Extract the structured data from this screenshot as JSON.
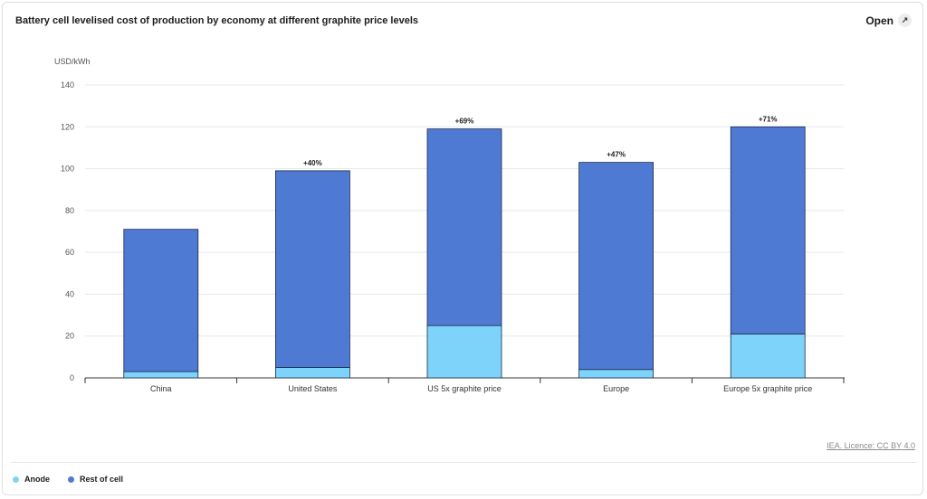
{
  "header": {
    "title": "Battery cell levelised cost of production by economy at different graphite price levels",
    "open_label": "Open",
    "open_icon": "expand-arrows-icon"
  },
  "credit": "IEA. Licence: CC BY 4.0",
  "legend": [
    {
      "label": "Anode",
      "color": "#7dd3fa"
    },
    {
      "label": "Rest of cell",
      "color": "#4f7ad3"
    }
  ],
  "chart_data": {
    "type": "bar",
    "stacked": true,
    "ylabel": "USD/kWh",
    "ylim": [
      0,
      140
    ],
    "yticks": [
      0,
      20,
      40,
      60,
      80,
      100,
      120,
      140
    ],
    "grid": true,
    "legend_position": "bottom-left",
    "categories": [
      "China",
      "United States",
      "US 5x graphite price",
      "Europe",
      "Europe 5x graphite price"
    ],
    "series": [
      {
        "name": "Anode",
        "color": "#7dd3fa",
        "values": [
          3,
          5,
          25,
          4,
          21
        ]
      },
      {
        "name": "Rest of cell",
        "color": "#4f7ad3",
        "values": [
          68,
          94,
          94,
          99,
          99
        ]
      }
    ],
    "annotations": [
      "",
      "+40%",
      "+69%",
      "+47%",
      "+71%"
    ]
  }
}
